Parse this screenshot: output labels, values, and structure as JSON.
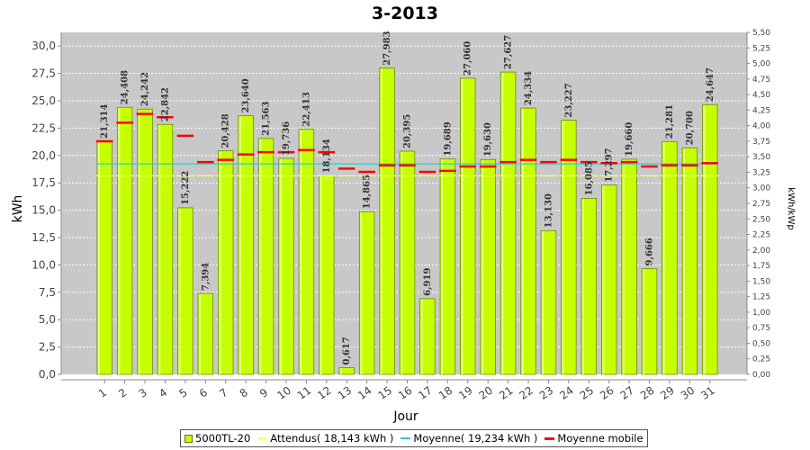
{
  "chart_data": {
    "type": "bar",
    "title": "3-2013",
    "xlabel": "Jour",
    "ylabel": "kWh",
    "ylabel_right": "kWh/kWp",
    "ylim": [
      0,
      31.25
    ],
    "ylim_right": [
      0,
      5.5
    ],
    "yticks": [
      "0,0",
      "2,5",
      "5,0",
      "7,5",
      "10,0",
      "12,5",
      "15,0",
      "17,5",
      "20,0",
      "22,5",
      "25,0",
      "27,5",
      "30,0"
    ],
    "yticks_right": [
      "0,00",
      "0,25",
      "0,50",
      "0,75",
      "1,00",
      "1,25",
      "1,50",
      "1,75",
      "2,00",
      "2,25",
      "2,50",
      "2,75",
      "3,00",
      "3,25",
      "3,50",
      "3,75",
      "4,00",
      "4,25",
      "4,50",
      "4,75",
      "5,00",
      "5,25",
      "5,50"
    ],
    "categories": [
      "1",
      "2",
      "3",
      "4",
      "5",
      "6",
      "7",
      "8",
      "9",
      "10",
      "11",
      "12",
      "13",
      "14",
      "15",
      "16",
      "17",
      "18",
      "19",
      "20",
      "21",
      "22",
      "23",
      "24",
      "25",
      "26",
      "27",
      "28",
      "29",
      "30",
      "31"
    ],
    "values": [
      21.314,
      24.408,
      24.242,
      22.842,
      15.222,
      7.394,
      20.428,
      23.64,
      21.563,
      19.736,
      22.413,
      18.134,
      0.617,
      14.865,
      27.983,
      20.395,
      6.919,
      19.689,
      27.06,
      19.63,
      27.627,
      24.334,
      13.13,
      23.227,
      16.085,
      17.297,
      19.66,
      9.666,
      21.281,
      20.7,
      24.647
    ],
    "value_labels": [
      "21,314",
      "24,408",
      "24,242",
      "22,842",
      "15,222",
      "7,394",
      "20,428",
      "23,640",
      "21,563",
      "19,736",
      "22,413",
      "18,134",
      "0,617",
      "14,865",
      "27,983",
      "20,395",
      "6,919",
      "19,689",
      "27,060",
      "19,630",
      "27,627",
      "24,334",
      "13,130",
      "23,227",
      "16,085",
      "17,297",
      "19,660",
      "9,666",
      "21,281",
      "20,700",
      "24,647"
    ],
    "expected": 18.143,
    "average": 19.234,
    "moving_average": [
      21.3,
      23.0,
      23.8,
      23.5,
      21.8,
      19.4,
      19.6,
      20.1,
      20.3,
      20.3,
      20.5,
      20.3,
      18.8,
      18.5,
      19.1,
      19.1,
      18.5,
      18.6,
      19.0,
      19.0,
      19.4,
      19.6,
      19.4,
      19.6,
      19.4,
      19.3,
      19.4,
      19.0,
      19.1,
      19.1,
      19.3
    ],
    "series": [
      {
        "name": "5000TL-20",
        "kind": "bar",
        "color": "#c6ff00"
      },
      {
        "name": "Attendus( 18,143 kWh )",
        "kind": "line",
        "color": "#ffff66"
      },
      {
        "name": "Moyenne( 19,234 kWh )",
        "kind": "line",
        "color": "#33cccc"
      },
      {
        "name": "Moyenne mobile",
        "kind": "line",
        "color": "#ff0000"
      }
    ],
    "grid": true,
    "legend_position": "bottom"
  }
}
